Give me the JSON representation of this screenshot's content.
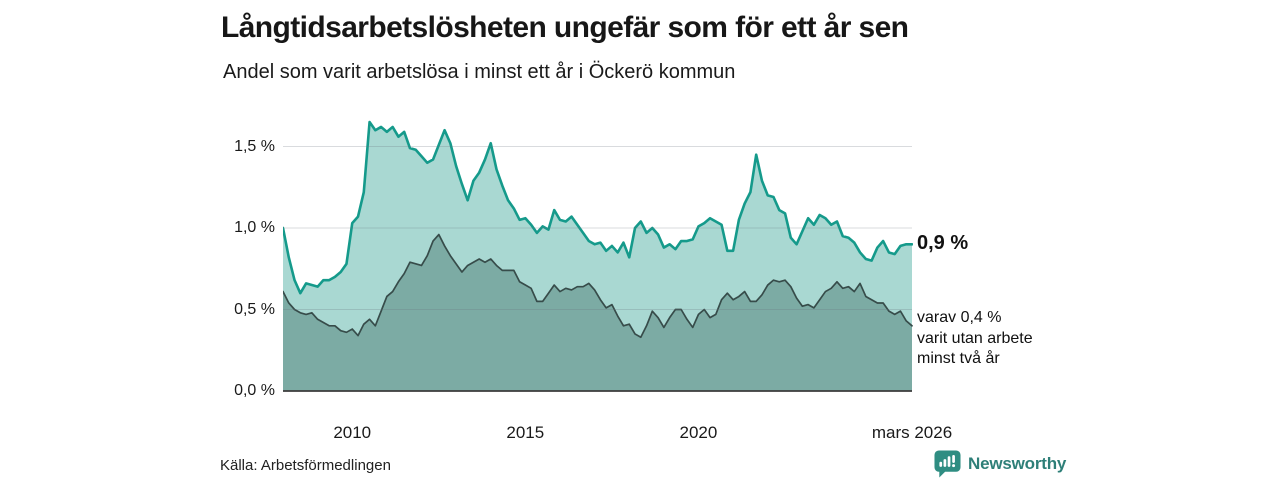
{
  "header": {
    "title": "Långtidsarbetslösheten ungefär som för ett år sen",
    "subtitle": "Andel som varit arbetslösa i minst ett år i Öckerö kommun"
  },
  "chart_data": {
    "type": "area",
    "title": "Långtidsarbetslösheten ungefär som för ett år sen",
    "subtitle": "Andel som varit arbetslösa i minst ett år i Öckerö kommun",
    "unit": "%",
    "x_domain": [
      2008.0,
      2026.17
    ],
    "x_start_year": 2008,
    "x_step_months": 2,
    "ylim": [
      0,
      1.7
    ],
    "grid": "horizontal",
    "y_axis": {
      "ticks": [
        {
          "v": 1.5,
          "label": "1,5 %"
        },
        {
          "v": 1.0,
          "label": "1,0 %"
        },
        {
          "v": 0.5,
          "label": "0,5 %"
        },
        {
          "v": 0.0,
          "label": "0,0 %"
        }
      ]
    },
    "x_axis": {
      "ticks": [
        {
          "v": 2010,
          "label": "2010"
        },
        {
          "v": 2015,
          "label": "2015"
        },
        {
          "v": 2020,
          "label": "2020"
        },
        {
          "v": 2026.17,
          "label": "mars 2026"
        }
      ]
    },
    "series": [
      {
        "name": "Andel som varit arbetslösa i minst ett år",
        "line_color": "#159a8b",
        "fill_color": "#a9d8d2",
        "end_value": 0.9,
        "values": [
          1.0,
          0.82,
          0.68,
          0.6,
          0.66,
          0.65,
          0.64,
          0.68,
          0.68,
          0.7,
          0.73,
          0.78,
          1.03,
          1.07,
          1.22,
          1.65,
          1.6,
          1.62,
          1.59,
          1.62,
          1.56,
          1.59,
          1.49,
          1.48,
          1.44,
          1.4,
          1.42,
          1.51,
          1.6,
          1.52,
          1.38,
          1.27,
          1.17,
          1.29,
          1.34,
          1.42,
          1.52,
          1.36,
          1.26,
          1.17,
          1.12,
          1.05,
          1.06,
          1.02,
          0.97,
          1.01,
          0.99,
          1.11,
          1.05,
          1.04,
          1.07,
          1.02,
          0.97,
          0.92,
          0.9,
          0.91,
          0.86,
          0.89,
          0.85,
          0.91,
          0.82,
          1.0,
          1.04,
          0.97,
          1.0,
          0.96,
          0.88,
          0.9,
          0.87,
          0.92,
          0.92,
          0.93,
          1.01,
          1.03,
          1.06,
          1.04,
          1.02,
          0.86,
          0.86,
          1.05,
          1.15,
          1.22,
          1.45,
          1.29,
          1.2,
          1.19,
          1.11,
          1.09,
          0.94,
          0.9,
          0.98,
          1.06,
          1.02,
          1.08,
          1.06,
          1.02,
          1.04,
          0.95,
          0.94,
          0.91,
          0.85,
          0.81,
          0.8,
          0.88,
          0.92,
          0.85,
          0.84,
          0.89,
          0.9,
          0.9
        ]
      },
      {
        "name": "varav utan arbete minst två år",
        "line_color": "#374c4a",
        "fill_color": "#7caba4",
        "end_value": 0.4,
        "values": [
          0.61,
          0.54,
          0.5,
          0.48,
          0.47,
          0.48,
          0.44,
          0.42,
          0.4,
          0.4,
          0.37,
          0.36,
          0.38,
          0.34,
          0.41,
          0.44,
          0.4,
          0.49,
          0.58,
          0.61,
          0.67,
          0.72,
          0.79,
          0.78,
          0.77,
          0.83,
          0.92,
          0.96,
          0.89,
          0.83,
          0.78,
          0.73,
          0.77,
          0.79,
          0.81,
          0.79,
          0.81,
          0.77,
          0.74,
          0.74,
          0.74,
          0.67,
          0.65,
          0.63,
          0.55,
          0.55,
          0.6,
          0.65,
          0.61,
          0.63,
          0.62,
          0.64,
          0.64,
          0.66,
          0.62,
          0.56,
          0.51,
          0.53,
          0.46,
          0.4,
          0.41,
          0.35,
          0.33,
          0.4,
          0.49,
          0.45,
          0.39,
          0.45,
          0.5,
          0.5,
          0.44,
          0.39,
          0.47,
          0.5,
          0.45,
          0.47,
          0.56,
          0.6,
          0.56,
          0.58,
          0.61,
          0.55,
          0.55,
          0.59,
          0.65,
          0.68,
          0.67,
          0.68,
          0.64,
          0.57,
          0.52,
          0.53,
          0.51,
          0.56,
          0.61,
          0.63,
          0.67,
          0.63,
          0.64,
          0.61,
          0.66,
          0.58,
          0.56,
          0.54,
          0.54,
          0.49,
          0.47,
          0.49,
          0.43,
          0.4
        ]
      }
    ],
    "annotations": {
      "end_value_label": "0,9 %",
      "note_lines": [
        "varav 0,4 %",
        "varit utan arbete",
        "minst två år"
      ]
    },
    "colors": {
      "grid": "#e1e1e6",
      "axis": "#3c3c3c",
      "brand_teal": "#2e7f78"
    }
  },
  "footer": {
    "source": "Källa: Arbetsförmedlingen",
    "brand": "Newsworthy"
  }
}
